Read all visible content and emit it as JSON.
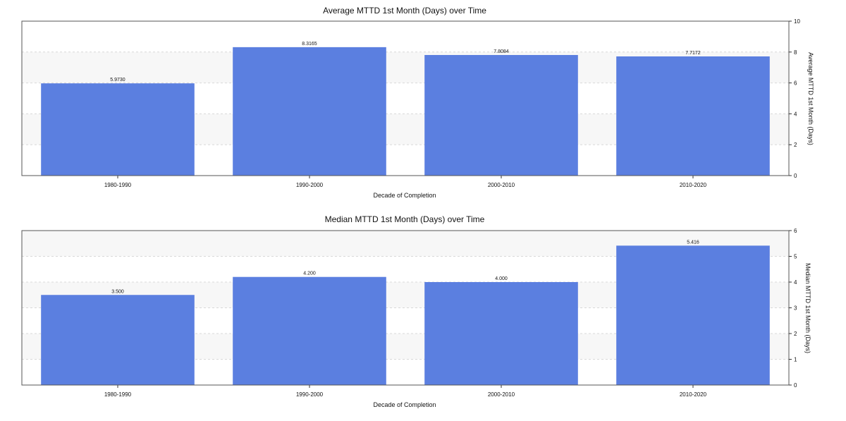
{
  "chart_data": [
    {
      "type": "bar",
      "title": "Average  MTTD 1st Month (Days) over Time",
      "xlabel": "Decade of Completion",
      "ylabel": "Average MTTD 1st Month (Days)",
      "categories": [
        "1980-1990",
        "1990-2000",
        "2000-2010",
        "2010-2020"
      ],
      "values": [
        5.973,
        8.3165,
        7.8084,
        7.7172
      ],
      "value_labels": [
        "5.9730",
        "8.3165",
        "7.8084",
        "7.7172"
      ],
      "ylim": [
        0,
        10
      ],
      "yticks": [
        0,
        2,
        4,
        6,
        8,
        10
      ],
      "y_axis_side": "right",
      "grid": true,
      "bar_color": "#5b7fe0"
    },
    {
      "type": "bar",
      "title": "Median MTTD 1st Month (Days) over Time",
      "xlabel": "Decade of Completion",
      "ylabel": "Median MTTD 1st Month (Days)",
      "categories": [
        "1980-1990",
        "1990-2000",
        "2000-2010",
        "2010-2020"
      ],
      "values": [
        3.5,
        4.2,
        4.0,
        5.416
      ],
      "value_labels": [
        "3.500",
        "4.200",
        "4.000",
        "5.416"
      ],
      "ylim": [
        0,
        6
      ],
      "yticks": [
        0,
        1,
        2,
        3,
        4,
        5,
        6
      ],
      "y_axis_side": "right",
      "grid": true,
      "bar_color": "#5b7fe0"
    }
  ]
}
